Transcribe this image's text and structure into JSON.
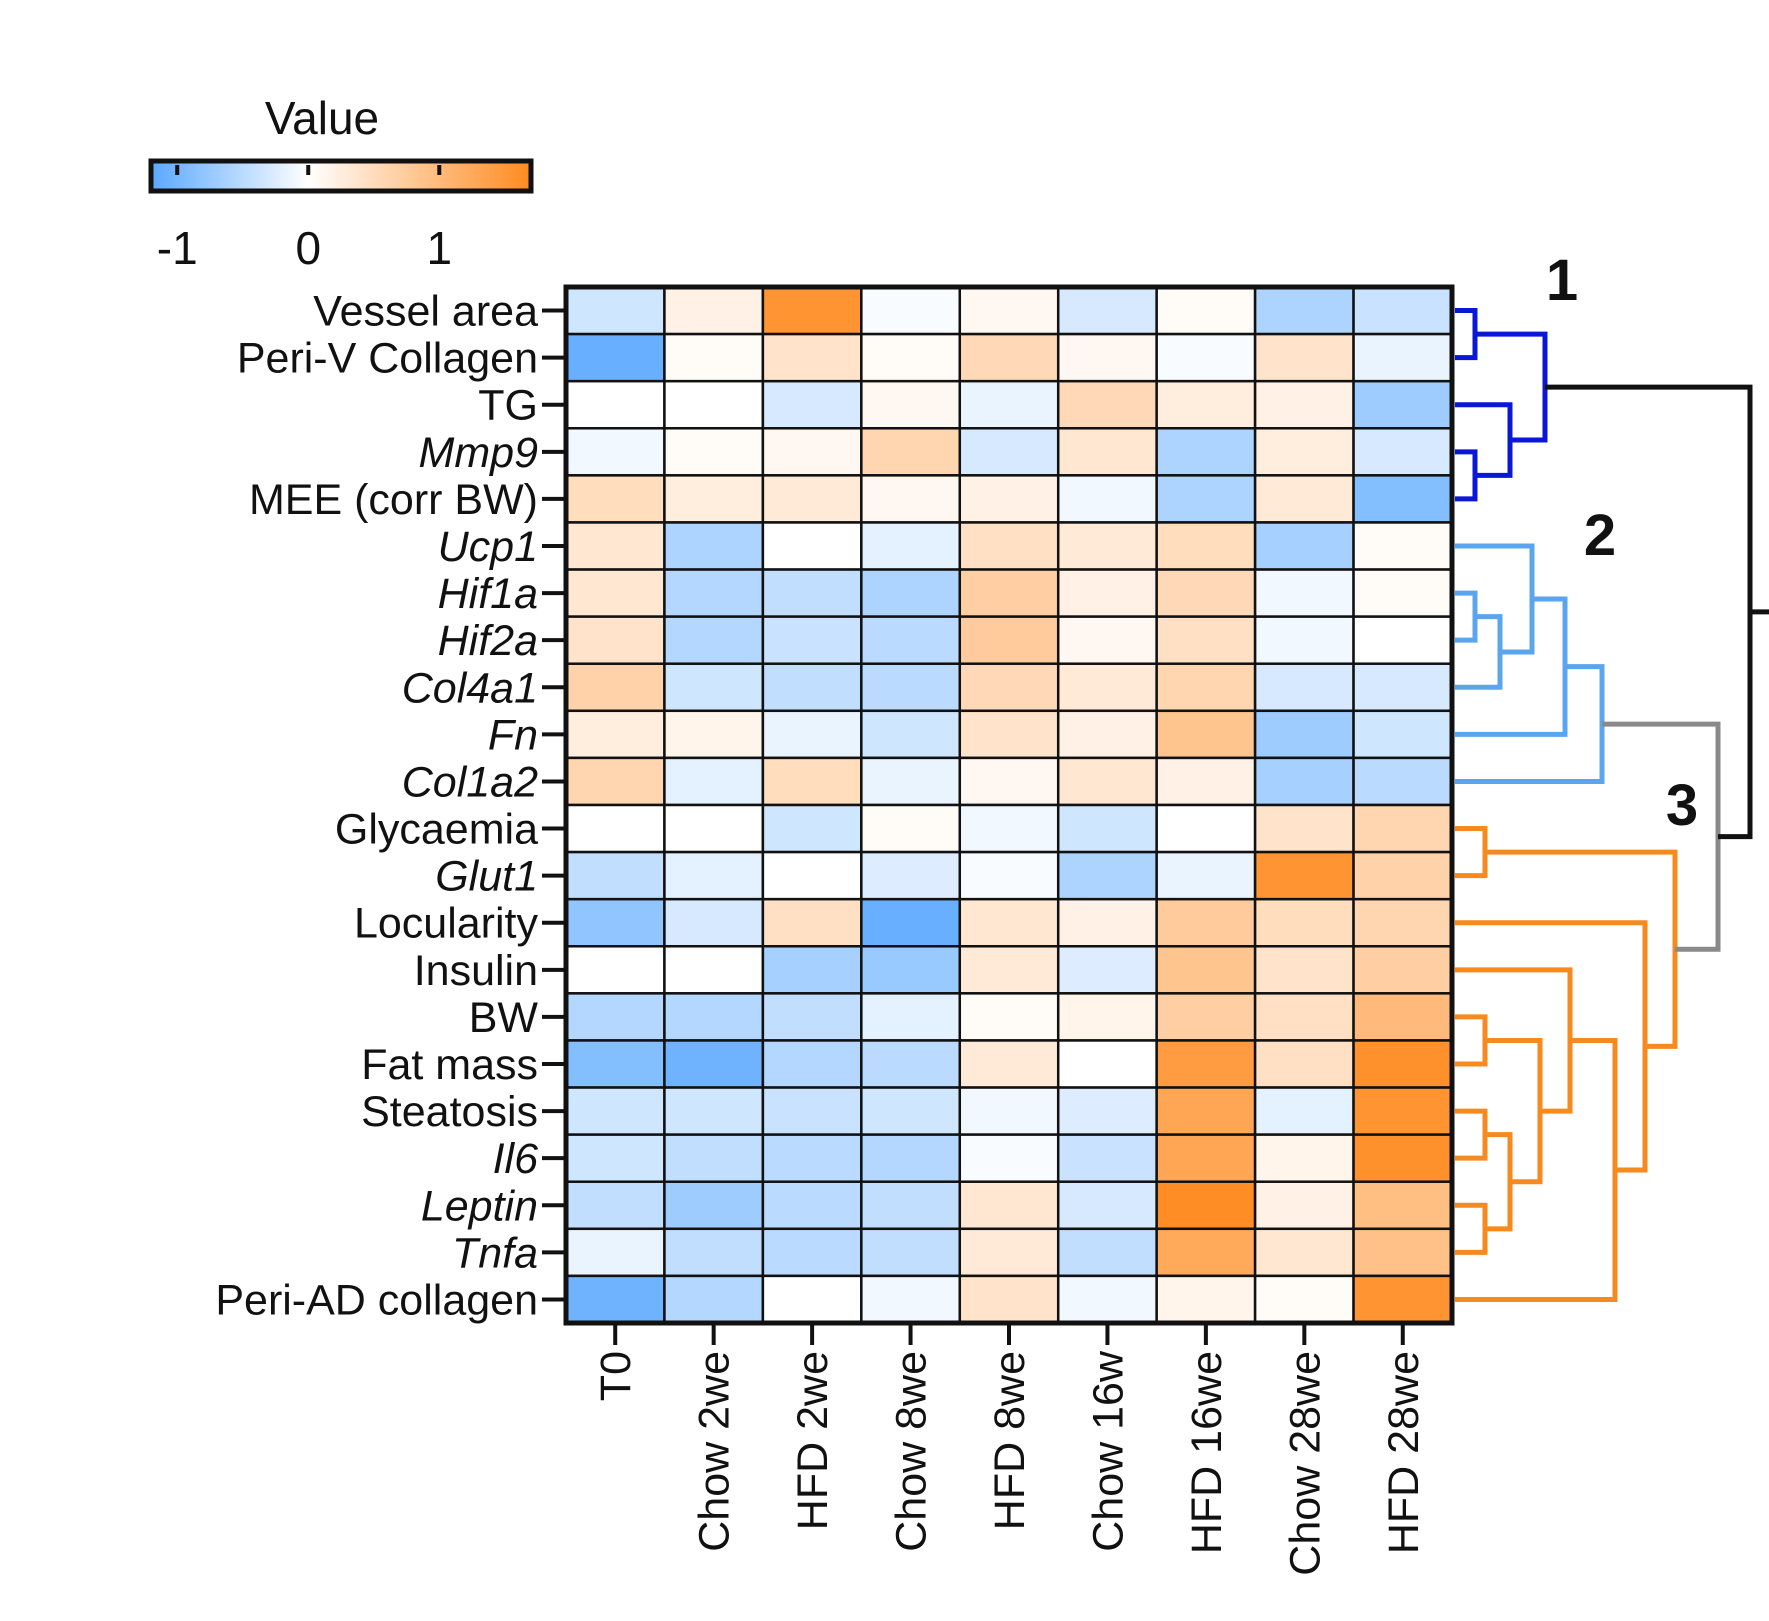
{
  "chart_data": {
    "type": "heatmap",
    "title": "",
    "colorbar": {
      "title": "Value",
      "min": -1.2,
      "max": 1.7,
      "ticks": [
        -1,
        0,
        1
      ],
      "tick_labels": [
        "-1",
        "0",
        "1"
      ],
      "colors": {
        "low": "#5aa8ff",
        "mid": "#ffffff",
        "high": "#ff8a1f"
      }
    },
    "columns": [
      "T0",
      "Chow 2we",
      "HFD 2we",
      "Chow 8we",
      "HFD 8we",
      "Chow 16w",
      "HFD 16we",
      "Chow 28we",
      "HFD 28we"
    ],
    "rows": [
      {
        "label": "Vessel area",
        "italic": false
      },
      {
        "label": "Peri-V Collagen",
        "italic": false
      },
      {
        "label": "TG",
        "italic": false
      },
      {
        "label": "Mmp9",
        "italic": true
      },
      {
        "label": "MEE (corr BW)",
        "italic": false
      },
      {
        "label": "Ucp1",
        "italic": true
      },
      {
        "label": "Hif1a",
        "italic": true
      },
      {
        "label": "Hif2a",
        "italic": true
      },
      {
        "label": "Col4a1",
        "italic": true
      },
      {
        "label": "Fn",
        "italic": true
      },
      {
        "label": "Col1a2",
        "italic": true
      },
      {
        "label": "Glycaemia",
        "italic": false
      },
      {
        "label": "Glut1",
        "italic": true
      },
      {
        "label": "Locularity",
        "italic": false
      },
      {
        "label": "Insulin",
        "italic": false
      },
      {
        "label": "BW",
        "italic": false
      },
      {
        "label": "Fat mass",
        "italic": false
      },
      {
        "label": "Steatosis",
        "italic": false
      },
      {
        "label": "Il6",
        "italic": true
      },
      {
        "label": "Leptin",
        "italic": true
      },
      {
        "label": "Tnfa",
        "italic": true
      },
      {
        "label": "Peri-AD collagen",
        "italic": false
      }
    ],
    "values": [
      [
        -0.35,
        0.2,
        1.55,
        -0.05,
        0.1,
        -0.3,
        0.05,
        -0.6,
        -0.4
      ],
      [
        -1.1,
        0.05,
        0.4,
        0.05,
        0.55,
        0.1,
        -0.05,
        0.4,
        -0.15
      ],
      [
        0.0,
        0.0,
        -0.3,
        0.1,
        -0.15,
        0.55,
        0.25,
        0.2,
        -0.7
      ],
      [
        -0.1,
        0.05,
        0.1,
        0.6,
        -0.3,
        0.35,
        -0.6,
        0.25,
        -0.3
      ],
      [
        0.5,
        0.25,
        0.3,
        0.1,
        0.2,
        -0.1,
        -0.6,
        0.3,
        -0.9
      ],
      [
        0.35,
        -0.6,
        0.0,
        -0.2,
        0.45,
        0.3,
        0.5,
        -0.65,
        0.05
      ],
      [
        0.35,
        -0.55,
        -0.45,
        -0.6,
        0.7,
        0.2,
        0.55,
        -0.1,
        0.05
      ],
      [
        0.4,
        -0.55,
        -0.4,
        -0.5,
        0.75,
        0.1,
        0.45,
        -0.1,
        0.0
      ],
      [
        0.65,
        -0.35,
        -0.45,
        -0.5,
        0.55,
        0.3,
        0.6,
        -0.3,
        -0.3
      ],
      [
        0.25,
        0.15,
        -0.15,
        -0.35,
        0.4,
        0.2,
        0.85,
        -0.7,
        -0.35
      ],
      [
        0.6,
        -0.2,
        0.5,
        -0.15,
        0.1,
        0.35,
        0.2,
        -0.65,
        -0.5
      ],
      [
        0.0,
        0.0,
        -0.35,
        0.05,
        -0.1,
        -0.35,
        0.0,
        0.4,
        0.6
      ],
      [
        -0.45,
        -0.2,
        0.0,
        -0.25,
        -0.05,
        -0.6,
        -0.15,
        1.55,
        0.65
      ],
      [
        -0.8,
        -0.3,
        0.45,
        -1.1,
        0.35,
        0.2,
        0.75,
        0.5,
        0.6
      ],
      [
        0.0,
        0.0,
        -0.65,
        -0.75,
        0.3,
        -0.25,
        0.85,
        0.4,
        0.7
      ],
      [
        -0.55,
        -0.55,
        -0.45,
        -0.2,
        0.05,
        0.15,
        0.7,
        0.45,
        1.0
      ],
      [
        -0.9,
        -1.05,
        -0.55,
        -0.5,
        0.3,
        0.0,
        1.45,
        0.45,
        1.6
      ],
      [
        -0.35,
        -0.35,
        -0.4,
        -0.35,
        -0.1,
        -0.25,
        1.3,
        -0.2,
        1.55
      ],
      [
        -0.35,
        -0.45,
        -0.5,
        -0.55,
        -0.05,
        -0.4,
        1.3,
        0.15,
        1.6
      ],
      [
        -0.45,
        -0.7,
        -0.5,
        -0.45,
        0.35,
        -0.3,
        1.65,
        0.2,
        0.95
      ],
      [
        -0.15,
        -0.45,
        -0.5,
        -0.45,
        0.3,
        -0.45,
        1.25,
        0.35,
        0.9
      ],
      [
        -1.05,
        -0.55,
        0.0,
        -0.1,
        0.4,
        -0.1,
        0.15,
        0.05,
        1.55
      ]
    ],
    "clusters": [
      {
        "label": "1",
        "color": "#0a17d6",
        "rows": [
          0,
          4
        ]
      },
      {
        "label": "2",
        "color": "#5aa5ee",
        "rows": [
          5,
          10
        ]
      },
      {
        "label": "3",
        "color": "#f78a1e",
        "rows": [
          11,
          21
        ]
      }
    ],
    "dendrogram_colors": {
      "root": "#111111",
      "join_2_3": "#8a8a8a"
    }
  }
}
